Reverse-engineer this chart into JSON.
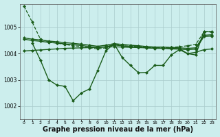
{
  "background_color": "#cceeed",
  "grid_color": "#aacccc",
  "line_color": "#1a5c1a",
  "xlabel": "Graphe pression niveau de la mer (hPa)",
  "xlabel_fontsize": 7,
  "xlim": [
    -0.5,
    23.5
  ],
  "ylim": [
    1001.5,
    1005.9
  ],
  "yticks": [
    1002,
    1003,
    1004,
    1005
  ],
  "xticks": [
    0,
    1,
    2,
    3,
    4,
    5,
    6,
    7,
    8,
    9,
    10,
    11,
    12,
    13,
    14,
    15,
    16,
    17,
    18,
    19,
    20,
    21,
    22,
    23
  ],
  "series": [
    {
      "x": [
        0,
        1,
        2,
        3,
        4,
        5,
        6,
        7,
        8,
        9,
        10,
        11,
        12,
        13,
        14,
        15,
        16,
        17,
        18,
        19,
        20,
        21,
        22,
        23
      ],
      "y": [
        1005.8,
        1005.2,
        1004.55,
        1004.45,
        1004.4,
        1004.35,
        1004.3,
        1004.27,
        1004.22,
        1004.18,
        1004.22,
        1004.35,
        1004.3,
        1004.28,
        1004.27,
        1004.24,
        1004.22,
        1004.22,
        1004.24,
        1004.26,
        1004.3,
        1004.35,
        1004.82,
        1004.85
      ],
      "linestyle": "--",
      "marker": "D",
      "markersize": 2.0,
      "linewidth": 0.9
    },
    {
      "x": [
        0,
        1,
        2,
        3,
        4,
        5,
        6,
        7,
        8,
        9,
        10,
        11,
        12,
        13,
        14,
        15,
        16,
        17,
        18,
        19,
        20,
        21,
        22,
        23
      ],
      "y": [
        1004.6,
        1004.55,
        1004.52,
        1004.48,
        1004.45,
        1004.42,
        1004.39,
        1004.36,
        1004.32,
        1004.28,
        1004.32,
        1004.38,
        1004.35,
        1004.32,
        1004.3,
        1004.27,
        1004.25,
        1004.25,
        1004.23,
        1004.22,
        1004.2,
        1004.22,
        1004.7,
        1004.72
      ],
      "linestyle": "-",
      "marker": "D",
      "markersize": 2.0,
      "linewidth": 1.0
    },
    {
      "x": [
        0,
        1,
        2,
        3,
        4,
        5,
        6,
        7,
        8,
        9,
        10,
        11,
        12,
        13,
        14,
        15,
        16,
        17,
        18,
        19,
        20,
        21,
        22,
        23
      ],
      "y": [
        1004.55,
        1004.5,
        1004.47,
        1004.43,
        1004.4,
        1004.37,
        1004.34,
        1004.31,
        1004.27,
        1004.22,
        1004.27,
        1004.33,
        1004.3,
        1004.27,
        1004.25,
        1004.22,
        1004.2,
        1004.2,
        1004.18,
        1004.17,
        1004.15,
        1004.17,
        1004.65,
        1004.67
      ],
      "linestyle": "-",
      "marker": "D",
      "markersize": 2.0,
      "linewidth": 1.0
    },
    {
      "x": [
        0,
        1,
        2,
        3,
        4,
        5,
        6,
        7,
        8,
        9,
        10,
        11,
        12,
        13,
        14,
        15,
        16,
        17,
        18,
        19,
        20,
        21,
        22,
        23
      ],
      "y": [
        1004.1,
        1004.12,
        1004.14,
        1004.16,
        1004.18,
        1004.2,
        1004.21,
        1004.22,
        1004.23,
        1004.24,
        1004.25,
        1004.26,
        1004.25,
        1004.24,
        1004.23,
        1004.22,
        1004.21,
        1004.21,
        1004.2,
        1004.19,
        1004.0,
        1004.05,
        1004.15,
        1004.18
      ],
      "linestyle": "-",
      "marker": "D",
      "markersize": 2.0,
      "linewidth": 1.0
    },
    {
      "x": [
        1,
        2,
        3,
        4,
        5,
        6,
        7,
        8,
        9,
        10,
        11,
        12,
        13,
        14,
        15,
        16,
        17,
        18,
        19,
        20,
        21,
        22,
        23
      ],
      "y": [
        1004.4,
        1003.75,
        1003.0,
        1002.8,
        1002.75,
        1002.2,
        1002.5,
        1002.65,
        1003.35,
        1004.1,
        1004.38,
        1003.85,
        1003.55,
        1003.27,
        1003.28,
        1003.55,
        1003.55,
        1003.95,
        1004.15,
        1004.0,
        1003.95,
        1004.85,
        1004.82
      ],
      "linestyle": "-",
      "marker": "D",
      "markersize": 2.0,
      "linewidth": 1.0
    }
  ]
}
